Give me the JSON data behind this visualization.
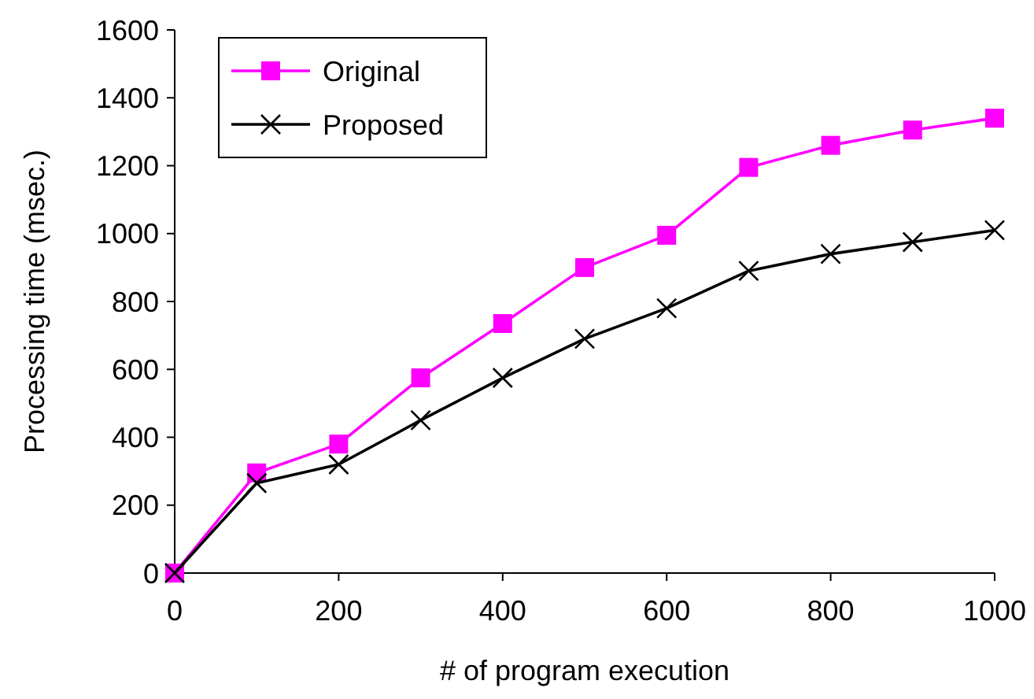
{
  "chart_data": {
    "type": "line",
    "xlabel": "# of program execution",
    "ylabel": "Processing time (msec.)",
    "x": [
      0,
      100,
      200,
      300,
      400,
      500,
      600,
      700,
      800,
      900,
      1000
    ],
    "series": [
      {
        "name": "Original",
        "color": "#ff00ff",
        "marker": "square",
        "values": [
          0,
          295,
          380,
          575,
          735,
          900,
          995,
          1195,
          1260,
          1305,
          1340
        ]
      },
      {
        "name": "Proposed",
        "color": "#000000",
        "marker": "cross",
        "values": [
          0,
          265,
          320,
          450,
          575,
          690,
          780,
          890,
          940,
          975,
          1010
        ]
      }
    ],
    "xlim": [
      0,
      1000
    ],
    "xticks": [
      0,
      200,
      400,
      600,
      800,
      1000
    ],
    "ylim": [
      0,
      1600
    ],
    "yticks": [
      0,
      200,
      400,
      600,
      800,
      1000,
      1200,
      1400,
      1600
    ],
    "grid": false,
    "legend": "top left"
  }
}
